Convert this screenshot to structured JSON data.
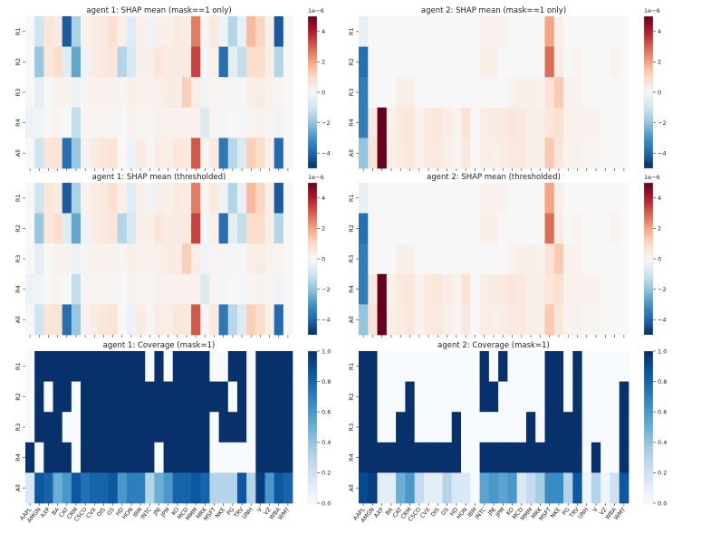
{
  "tickers": [
    "AAPL",
    "AMGN",
    "AXP",
    "BA",
    "CAT",
    "CRM",
    "CSCO",
    "CVX",
    "DIS",
    "GS",
    "HD",
    "HON",
    "IBM",
    "INTC",
    "JNJ",
    "JPM",
    "KO",
    "MCD",
    "MMM",
    "MRK",
    "MSFT",
    "NKE",
    "PG",
    "TRV",
    "UNH",
    "V",
    "VZ",
    "WBA",
    "WMT"
  ],
  "rows": [
    "R1",
    "R2",
    "R3",
    "R4",
    "All"
  ],
  "colors": {
    "neg": "#053061",
    "zero": "#f7f7f7",
    "pos": "#67001f",
    "cov_low": "#f7fbff",
    "cov_high": "#08306b"
  },
  "chart_data": [
    {
      "type": "heatmap",
      "title": "agent 1: SHAP mean (mask==1 only)",
      "scale": "div",
      "cbar_ticks": [
        "4",
        "2",
        "0",
        "−2",
        "−4"
      ],
      "cbar_exp": "1e−6",
      "vlim": [
        -5,
        5
      ],
      "values": [
        [
          0,
          -1,
          0.6,
          0.4,
          -4.2,
          -1.6,
          0.2,
          0.4,
          0.5,
          0.8,
          0.3,
          -0.6,
          0.3,
          -0.2,
          0.3,
          0.3,
          0.5,
          0.4,
          2.6,
          0.1,
          0.5,
          -0.3,
          -1.5,
          -0.4,
          1.6,
          1.1,
          0.3,
          -4.2,
          0
        ],
        [
          0,
          -1.9,
          0.6,
          0.9,
          -0.6,
          -2.6,
          -0.2,
          0.4,
          0.5,
          0.6,
          -1.5,
          -0.8,
          0.3,
          0.3,
          0.6,
          0.4,
          0.4,
          0.5,
          3.4,
          -0.1,
          0.3,
          -3.8,
          -0.5,
          -1.2,
          0.9,
          0.9,
          0.3,
          -1.5,
          0
        ],
        [
          0,
          -0.5,
          0,
          0.2,
          0.2,
          -0.3,
          0.1,
          0.2,
          0.2,
          0.2,
          0.1,
          0.3,
          0.2,
          0.2,
          0.3,
          0.4,
          0.4,
          1.2,
          0.4,
          -0.2,
          0.1,
          0.1,
          -0.1,
          0.1,
          0.3,
          0.4,
          0.2,
          0.1,
          0
        ],
        [
          -0.3,
          -0.2,
          0,
          0.1,
          0,
          -1.2,
          0.1,
          0.1,
          0.1,
          0.1,
          0,
          0.2,
          0.1,
          0.1,
          0.2,
          0.2,
          0.2,
          0.2,
          0.2,
          -0.7,
          0.1,
          -0.1,
          0,
          -0.1,
          0.1,
          0.2,
          0.1,
          -0.2,
          0
        ],
        [
          0,
          -1,
          0.6,
          0.7,
          -3.8,
          -1.9,
          0.2,
          0.4,
          0.6,
          0.7,
          0,
          -0.3,
          0.4,
          0.1,
          0.4,
          0.3,
          0.6,
          0.5,
          3.1,
          0.1,
          0.5,
          -3.6,
          -1.4,
          -0.7,
          1.2,
          0.9,
          0.3,
          -3.9,
          0
        ]
      ]
    },
    {
      "type": "heatmap",
      "title": "agent 2: SHAP mean (mask==1 only)",
      "scale": "div",
      "cbar_ticks": [
        "4",
        "2",
        "0",
        "−2",
        "−4"
      ],
      "cbar_exp": "1e−6",
      "vlim": [
        -5,
        5
      ],
      "values": [
        [
          -0.4,
          0,
          0,
          0,
          0,
          0,
          0,
          0,
          0,
          0,
          0,
          0,
          0,
          0.2,
          0.2,
          0.2,
          0,
          0,
          0,
          0,
          2,
          0.3,
          0,
          0,
          0,
          0,
          0,
          0,
          0
        ],
        [
          -3.8,
          0,
          0,
          0,
          0,
          0,
          0,
          0,
          0,
          0,
          0,
          0,
          0,
          0.3,
          0.3,
          0,
          0,
          0,
          0,
          0,
          2.8,
          0.4,
          0,
          0.2,
          0,
          0,
          0,
          0.2,
          0
        ],
        [
          -3.5,
          0,
          0,
          0,
          0.3,
          0.3,
          0,
          0,
          0,
          0,
          0,
          0,
          0,
          0,
          0,
          0,
          0.2,
          0.3,
          0.3,
          0.2,
          0.7,
          1.3,
          0.2,
          0.2,
          0,
          0,
          0,
          0,
          0
        ],
        [
          -3.5,
          0.5,
          5,
          0.3,
          0.5,
          0.6,
          0.2,
          0.5,
          0.6,
          0.4,
          0.2,
          0.7,
          0,
          0.4,
          0.4,
          0.5,
          0.6,
          0.5,
          0.3,
          0.3,
          0.6,
          0.8,
          0.2,
          0.2,
          0.2,
          0.2,
          0,
          0,
          0
        ],
        [
          -2,
          0.7,
          5,
          0.3,
          0.4,
          0.6,
          0.2,
          0.5,
          0.5,
          0.3,
          0.1,
          0.5,
          0,
          0.4,
          0.3,
          0.4,
          0.5,
          0.5,
          0.3,
          0.3,
          1.3,
          0.6,
          0.2,
          0.2,
          0.1,
          0.1,
          0,
          0,
          0
        ]
      ]
    },
    {
      "type": "heatmap",
      "title": "agent 1: SHAP mean (thresholded)",
      "scale": "div",
      "cbar_ticks": [
        "4",
        "2",
        "0",
        "−2",
        "−4"
      ],
      "cbar_exp": "1e−6",
      "vlim": [
        -5,
        5
      ],
      "values": [
        [
          0,
          -1,
          0.6,
          0.4,
          -4.2,
          -1.6,
          0.2,
          0.4,
          0.5,
          0.8,
          0.3,
          -0.6,
          0.3,
          -0.2,
          0.3,
          0.3,
          0.5,
          0.4,
          2.6,
          0.1,
          0.5,
          -0.3,
          -1.5,
          -0.4,
          1.6,
          1.1,
          0.3,
          -4.2,
          0
        ],
        [
          0,
          -1.9,
          0.6,
          0.9,
          -0.6,
          -2.6,
          -0.2,
          0.4,
          0.5,
          0.6,
          -1.5,
          -0.8,
          0.3,
          0.3,
          0.6,
          0.4,
          0.4,
          0.5,
          3.4,
          -0.1,
          0.3,
          -3.8,
          -0.5,
          -1.2,
          0.9,
          0.9,
          0.3,
          -1.5,
          0
        ],
        [
          0,
          -0.5,
          0,
          0.2,
          0.2,
          -0.3,
          0.1,
          0.2,
          0.2,
          0.2,
          0.1,
          0.3,
          0.2,
          0.2,
          0.3,
          0.4,
          0.4,
          1.2,
          0.4,
          -0.2,
          0.1,
          0.1,
          -0.1,
          0.1,
          0.3,
          0.4,
          0.2,
          0.1,
          0
        ],
        [
          -0.3,
          -0.2,
          0,
          0.1,
          0,
          -1.2,
          0.1,
          0.1,
          0.1,
          0.1,
          0,
          0.2,
          0.1,
          0.1,
          0.2,
          0.2,
          0.2,
          0.2,
          0.2,
          -0.7,
          0.1,
          -0.1,
          0,
          -0.1,
          0.1,
          0.2,
          0.1,
          -0.2,
          0
        ],
        [
          0,
          -1,
          0.6,
          0.7,
          -3.8,
          -1.9,
          0.2,
          0.4,
          0.6,
          0.7,
          0,
          -0.3,
          0.4,
          0.1,
          0.4,
          0.3,
          0.6,
          0.5,
          3.1,
          0.1,
          0.5,
          -3.6,
          -1.4,
          -0.7,
          1.2,
          0.9,
          0.3,
          -3.9,
          0
        ]
      ]
    },
    {
      "type": "heatmap",
      "title": "agent 2: SHAP mean (thresholded)",
      "scale": "div",
      "cbar_ticks": [
        "4",
        "2",
        "0",
        "−2",
        "−4"
      ],
      "cbar_exp": "1e−6",
      "vlim": [
        -5,
        5
      ],
      "values": [
        [
          -0.4,
          0,
          0,
          0,
          0,
          0,
          0,
          0,
          0,
          0,
          0,
          0,
          0,
          0.2,
          0.2,
          0.2,
          0,
          0,
          0,
          0,
          2,
          0.3,
          0,
          0,
          0,
          0,
          0,
          0,
          0
        ],
        [
          -3.8,
          0,
          0,
          0,
          0,
          0,
          0,
          0,
          0,
          0,
          0,
          0,
          0,
          0.3,
          0.3,
          0,
          0,
          0,
          0,
          0,
          2.8,
          0.4,
          0,
          0.2,
          0,
          0,
          0,
          0.2,
          0
        ],
        [
          -3.5,
          0,
          0,
          0,
          0.3,
          0.3,
          0,
          0,
          0,
          0,
          0,
          0,
          0,
          0,
          0,
          0,
          0.2,
          0.3,
          0.3,
          0.2,
          0.7,
          1.3,
          0.2,
          0.2,
          0,
          0,
          0,
          0,
          0
        ],
        [
          -3.5,
          0.5,
          5,
          0.3,
          0.5,
          0.6,
          0.2,
          0.5,
          0.6,
          0.4,
          0.2,
          0.7,
          0,
          0.4,
          0.4,
          0.5,
          0.6,
          0.5,
          0.3,
          0.3,
          0.6,
          0.8,
          0.2,
          0.2,
          0.2,
          0.2,
          0,
          0,
          0
        ],
        [
          -2,
          0.7,
          5,
          0.3,
          0.4,
          0.6,
          0.2,
          0.5,
          0.5,
          0.3,
          0.1,
          0.5,
          0,
          0.4,
          0.3,
          0.4,
          0.5,
          0.5,
          0.3,
          0.3,
          1.3,
          0.6,
          0.2,
          0.2,
          0.1,
          0.1,
          0,
          0,
          0
        ]
      ]
    },
    {
      "type": "heatmap",
      "title": "agent 1: Coverage (mask=1)",
      "scale": "seq",
      "cbar_ticks": [
        "1.0",
        "0.8",
        "0.6",
        "0.4",
        "0.2",
        "0.0"
      ],
      "cbar_exp": "",
      "vlim": [
        0,
        1
      ],
      "values": [
        [
          0,
          1,
          1,
          1,
          1,
          1,
          1,
          1,
          1,
          1,
          1,
          1,
          1,
          0,
          1,
          0,
          1,
          1,
          1,
          1,
          0,
          0,
          1,
          1,
          0,
          1,
          1,
          1,
          1
        ],
        [
          0,
          1,
          0,
          1,
          1,
          0,
          1,
          1,
          1,
          1,
          1,
          1,
          1,
          1,
          1,
          1,
          1,
          1,
          1,
          1,
          1,
          1,
          0,
          1,
          0,
          1,
          1,
          1,
          1
        ],
        [
          0,
          1,
          1,
          1,
          0,
          0,
          1,
          1,
          1,
          1,
          1,
          1,
          1,
          1,
          1,
          1,
          1,
          1,
          1,
          1,
          0,
          1,
          1,
          1,
          0,
          1,
          1,
          1,
          1
        ],
        [
          1,
          0,
          1,
          1,
          1,
          0,
          1,
          1,
          1,
          1,
          1,
          1,
          1,
          1,
          0,
          1,
          1,
          1,
          1,
          1,
          0,
          0,
          0,
          0,
          0,
          1,
          1,
          1,
          1
        ],
        [
          0.15,
          0.85,
          0.8,
          0.5,
          0.6,
          0.85,
          0.75,
          0.8,
          0.8,
          0.85,
          0.6,
          0.7,
          0.7,
          0.3,
          0.5,
          0.6,
          0.8,
          0.8,
          0.85,
          0.8,
          0.3,
          0.3,
          0.3,
          0.85,
          0.3,
          0.95,
          0.6,
          0.85,
          0.8
        ]
      ]
    },
    {
      "type": "heatmap",
      "title": "agent 2: Coverage (mask=1)",
      "scale": "seq",
      "cbar_ticks": [
        "1.0",
        "0.8",
        "0.6",
        "0.4",
        "0.2",
        "0.0"
      ],
      "cbar_exp": "",
      "vlim": [
        0,
        1
      ],
      "values": [
        [
          1,
          1,
          0,
          0,
          0,
          0,
          0,
          0,
          0,
          0,
          0,
          0,
          0,
          1,
          0,
          1,
          0,
          0,
          0,
          0,
          1,
          1,
          0,
          1,
          0,
          0,
          0,
          0,
          0
        ],
        [
          1,
          1,
          0,
          0,
          0,
          1,
          0,
          0,
          0,
          0,
          0,
          0,
          0,
          1,
          1,
          0,
          0,
          0,
          0,
          0,
          1,
          1,
          0,
          1,
          0,
          0,
          0,
          0,
          1
        ],
        [
          1,
          1,
          0,
          0,
          1,
          1,
          0,
          0,
          0,
          0,
          1,
          0,
          0,
          0,
          0,
          0,
          0,
          0,
          1,
          0,
          1,
          1,
          1,
          1,
          0,
          0,
          0,
          0,
          1
        ],
        [
          1,
          1,
          1,
          1,
          1,
          1,
          1,
          1,
          1,
          1,
          1,
          0,
          0,
          1,
          1,
          1,
          1,
          1,
          1,
          1,
          1,
          1,
          1,
          1,
          0,
          1,
          0,
          0,
          1
        ],
        [
          0.9,
          0.95,
          0.1,
          0.1,
          0.5,
          0.6,
          0.25,
          0.1,
          0.1,
          0.3,
          0.15,
          0.15,
          0,
          0.55,
          0.6,
          0.55,
          0.6,
          0.15,
          0.25,
          0.35,
          0.65,
          0.65,
          0.3,
          0.85,
          0.05,
          0.3,
          0.05,
          0.2,
          0.85
        ]
      ]
    }
  ]
}
